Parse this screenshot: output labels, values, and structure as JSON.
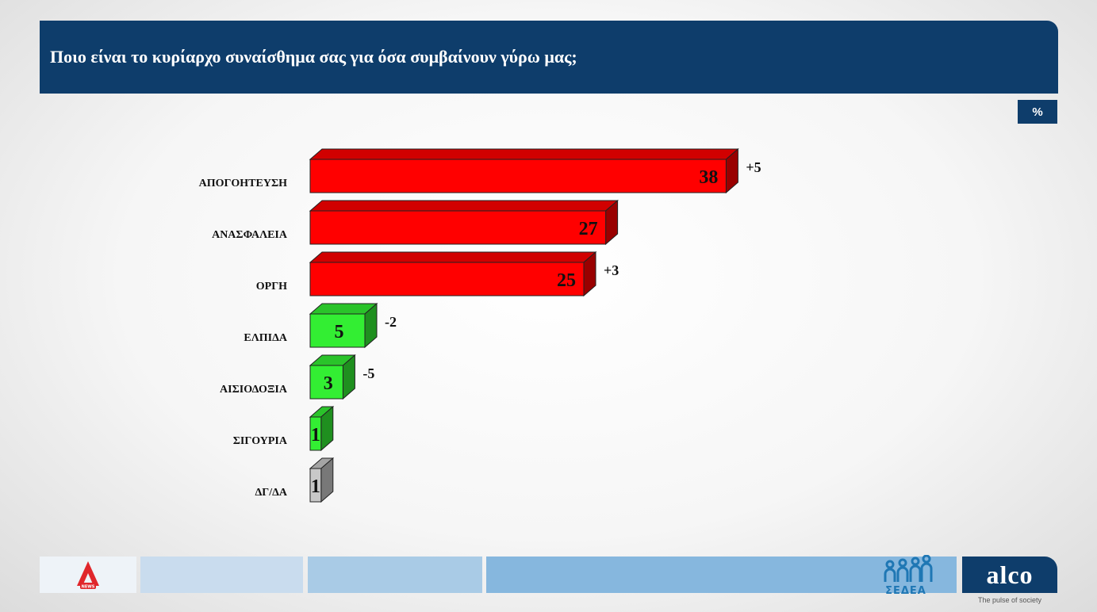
{
  "header": {
    "title": "Ποιο είναι το κυρίαρχο συναίσθημα σας για όσα συμβαίνουν γύρω μας;"
  },
  "unit_badge": "%",
  "chart_data": {
    "type": "bar",
    "orientation": "horizontal",
    "title": "Ποιο είναι το κυρίαρχο συναίσθημα σας για όσα συμβαίνουν γύρω μας;",
    "unit": "%",
    "categories": [
      "ΑΠΟΓΟΗΤΕΥΣΗ",
      "ΑΝΑΣΦΑΛΕΙΑ",
      "ΟΡΓΗ",
      "ΕΛΠΙΔΑ",
      "ΑΙΣΙΟΔΟΞΙΑ",
      "ΣΙΓΟΥΡΙΑ",
      "ΔΓ/ΔΑ"
    ],
    "values": [
      38,
      27,
      25,
      5,
      3,
      1,
      1
    ],
    "changes": [
      "+5",
      "",
      "+3",
      "-2",
      "-5",
      "",
      ""
    ],
    "bar_colors": [
      "#ff0000",
      "#ff0000",
      "#ff0000",
      "#33ee33",
      "#33ee33",
      "#33ee33",
      "#c8c8c8"
    ],
    "style": "3d-bars",
    "grid": false,
    "legend": "none"
  },
  "footer": {
    "colors": [
      "#c9dcee",
      "#a9cbe6",
      "#86b7de"
    ],
    "sedea_label": "ΣΕΔΕΑ",
    "alco_label": "alco",
    "alco_tagline": "The pulse of society",
    "alpha_badge": "NEWS"
  }
}
